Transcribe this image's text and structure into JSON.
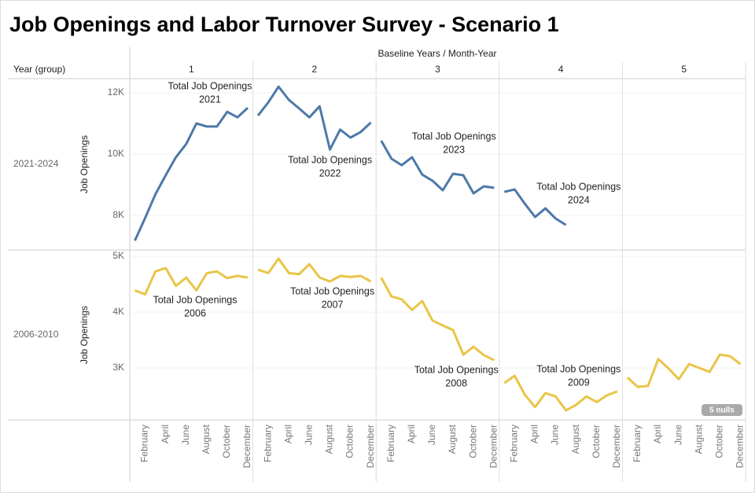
{
  "chart_data": {
    "type": "line",
    "title": "Job Openings and Labor Turnover Survey - Scenario 1",
    "column_header": "Baseline Years / Month-Year",
    "row_header": "Year (group)",
    "columns": [
      "1",
      "2",
      "3",
      "4",
      "5"
    ],
    "categories": [
      null,
      "February",
      null,
      "April",
      null,
      "June",
      null,
      "August",
      null,
      "October",
      null,
      "December"
    ],
    "y_label": "Job Openings",
    "rows": [
      {
        "name": "2021-2024",
        "color": "#4e79a7",
        "ylim": [
          6872,
          12462
        ],
        "yticks": [
          {
            "value": 8000,
            "label": "8K"
          },
          {
            "value": 10000,
            "label": "10K"
          },
          {
            "value": 12000,
            "label": "12K"
          }
        ],
        "panels": [
          {
            "annotation": [
              "Total Job Openings",
              "2021"
            ],
            "values": [
              7180,
              7920,
              8690,
              9310,
              9900,
              10330,
              11000,
              10900,
              10900,
              11380,
              11200,
              11510
            ]
          },
          {
            "annotation": [
              "Total Job Openings",
              "2022"
            ],
            "values": [
              11260,
              11690,
              12200,
              11770,
              11490,
              11200,
              11560,
              10150,
              10800,
              10540,
              10720,
              11030
            ]
          },
          {
            "annotation": [
              "Total Job Openings",
              "2023"
            ],
            "values": [
              10440,
              9850,
              9640,
              9900,
              9330,
              9130,
              8820,
              9360,
              9310,
              8720,
              8950,
              8900
            ]
          },
          {
            "annotation": [
              "Total Job Openings",
              "2024"
            ],
            "values": [
              8770,
              8850,
              8380,
              7950,
              8230,
              7900,
              7690
            ]
          }
        ]
      },
      {
        "name": "2006-2010",
        "color": "#e9c547",
        "ylim": [
          2070,
          5113
        ],
        "yticks": [
          {
            "value": 3000,
            "label": "3K"
          },
          {
            "value": 4000,
            "label": "4K"
          },
          {
            "value": 5000,
            "label": "5K"
          }
        ],
        "nulls_badge": "5 nulls",
        "panels": [
          {
            "annotation": [
              "Total Job Openings",
              "2006"
            ],
            "values": [
              4390,
              4320,
              4730,
              4790,
              4470,
              4620,
              4390,
              4700,
              4730,
              4610,
              4650,
              4620
            ]
          },
          {
            "annotation": [
              "Total Job Openings",
              "2007"
            ],
            "values": [
              4760,
              4700,
              4960,
              4700,
              4680,
              4860,
              4620,
              4550,
              4650,
              4630,
              4650,
              4550
            ]
          },
          {
            "annotation": [
              "Total Job Openings",
              "2008"
            ],
            "values": [
              4620,
              4280,
              4230,
              4040,
              4200,
              3850,
              3760,
              3680,
              3240,
              3380,
              3230,
              3140
            ]
          },
          {
            "annotation": [
              "Total Job Openings",
              "2009"
            ],
            "values": [
              2730,
              2860,
              2520,
              2300,
              2550,
              2490,
              2240,
              2340,
              2490,
              2390,
              2510,
              2580
            ]
          },
          {
            "values": [
              2830,
              2660,
              2680,
              3160,
              2990,
              2800,
              3070,
              3000,
              2930,
              3240,
              3210,
              3070
            ]
          }
        ]
      }
    ]
  }
}
